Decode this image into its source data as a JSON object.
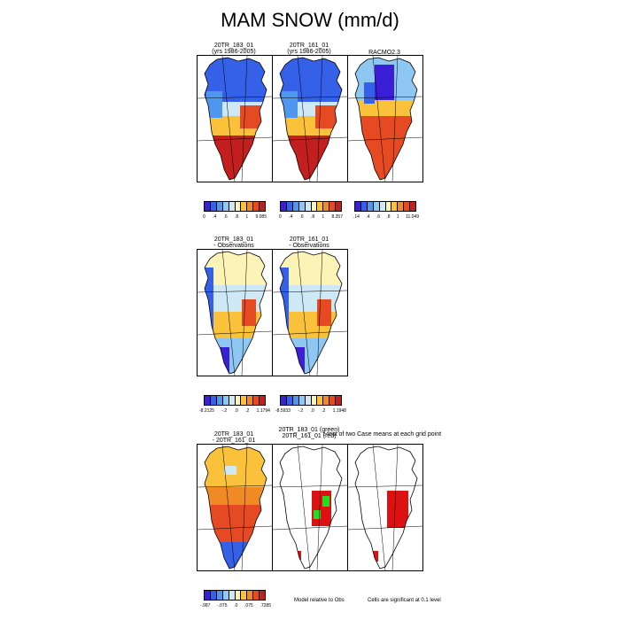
{
  "title": "MAM SNOW (mm/d)",
  "row1": {
    "panels": [
      {
        "line1": "20TR_183_01",
        "line2": "(yrs 1986-2005)",
        "kind": "abs"
      },
      {
        "line1": "20TR_161_01",
        "line2": "(yrs 1986-2005)",
        "kind": "abs"
      },
      {
        "line1": "RACMO2.3",
        "line2": "",
        "kind": "racmo"
      }
    ],
    "colorbars": [
      {
        "labels": [
          "0",
          ".4",
          ".6",
          ".8",
          "1",
          "9.085"
        ]
      },
      {
        "labels": [
          "0",
          ".4",
          ".6",
          ".8",
          "1",
          "8.357"
        ]
      },
      {
        "labels": [
          ".14",
          ".4",
          ".6",
          ".8",
          "1",
          "11.049"
        ]
      }
    ]
  },
  "row2": {
    "panels": [
      {
        "line1": "20TR_183_01",
        "line2": "- Observations",
        "kind": "diff"
      },
      {
        "line1": "20TR_161_01",
        "line2": "- Observations",
        "kind": "diff"
      }
    ],
    "colorbars": [
      {
        "labels": [
          "-8.2125",
          "-.2",
          ".0",
          ".2",
          "1.1794"
        ]
      },
      {
        "labels": [
          "-8.5933",
          "-.2",
          ".0",
          ".2",
          "1.1948"
        ]
      }
    ]
  },
  "row3": {
    "panels": [
      {
        "line1": "20TR_183_01",
        "line2": "- 20TR_161_01",
        "kind": "cdiff"
      },
      {
        "line1": "20TR_183_01 (green)",
        "line2": "20TR_161_01 (red)",
        "kind": "sig"
      },
      {
        "line1": "",
        "line2": "",
        "kind": "sig2"
      }
    ],
    "overlay_text": "t-test of two Case means at each grid point",
    "colorbar": {
      "labels": [
        "-.987",
        "-.075",
        ".0",
        ".075",
        ".7285"
      ]
    },
    "note_left": "Model relative to Obs",
    "note_right": "Cells are significant at 0.1 level"
  },
  "colors": {
    "seq": [
      "#3a1fd6",
      "#3560e8",
      "#4f97ee",
      "#8ec7f2",
      "#cfe8f6",
      "#fbf4b6",
      "#f9c23a",
      "#f08a24",
      "#e54a22",
      "#c41f1f"
    ],
    "div": [
      "#3a1fd6",
      "#3560e8",
      "#4f97ee",
      "#8ec7f2",
      "#cfe8f6",
      "#fbf4b6",
      "#f9c23a",
      "#f08a24",
      "#e54a22",
      "#c41f1f"
    ],
    "green": "#22dd22",
    "red": "#dd1111"
  }
}
